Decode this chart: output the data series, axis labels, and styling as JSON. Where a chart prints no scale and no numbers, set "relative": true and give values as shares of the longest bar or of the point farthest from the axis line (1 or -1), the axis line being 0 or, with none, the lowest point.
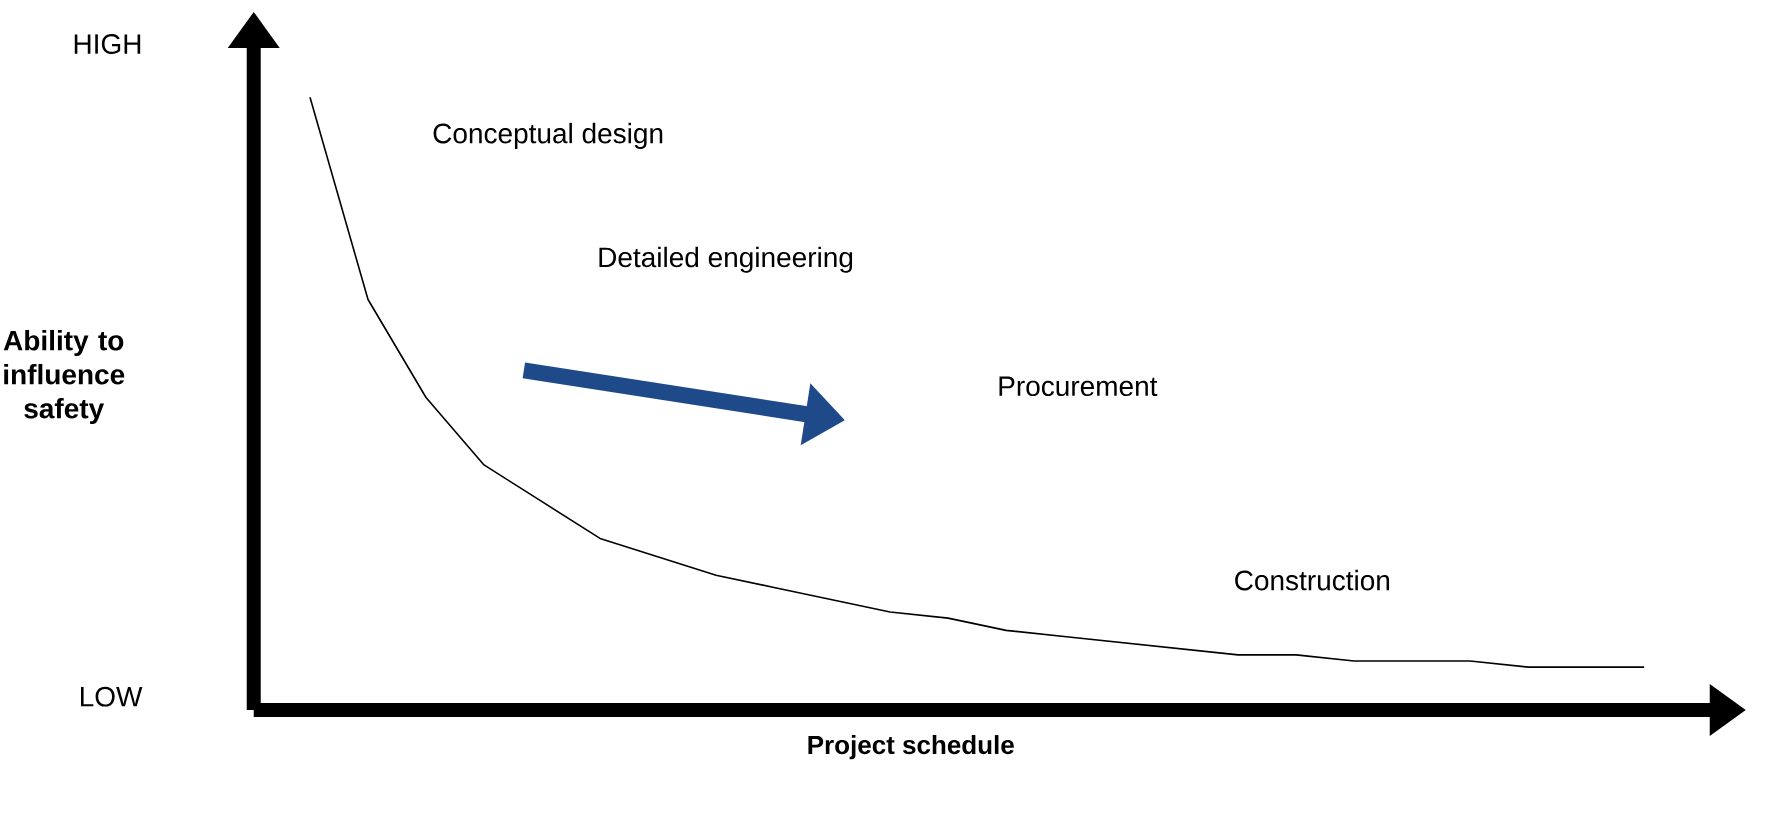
{
  "chart_data": {
    "type": "line",
    "xlabel": "Project schedule",
    "ylabel": "Ability to influence safety",
    "categories": [
      null,
      null,
      null,
      null,
      null,
      null,
      null,
      null,
      null,
      null,
      null,
      null,
      null,
      null,
      null,
      null,
      null,
      null,
      null,
      null,
      null,
      null,
      null,
      null
    ],
    "series": [
      {
        "color": "#000000",
        "values": [
          1,
          0.67,
          0.51,
          0.4,
          0.34,
          0.28,
          0.25,
          0.22,
          0.2,
          0.18,
          0.16,
          0.15,
          0.13,
          0.12,
          0.11,
          0.1,
          0.09,
          0.09,
          0.08,
          0.08,
          0.08,
          0.07,
          0.07,
          0.07
        ]
      }
    ],
    "relative": true,
    "annotations": [
      "HIGH",
      "LOW",
      "Conceptual design",
      "Detailed engineering",
      "Procurement",
      "Construction"
    ],
    "marker": "none",
    "line_style": "solid",
    "legend": false
  }
}
